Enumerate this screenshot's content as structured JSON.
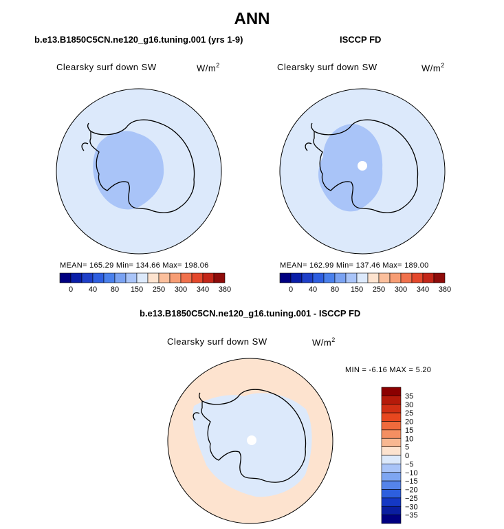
{
  "page": {
    "title": "ANN"
  },
  "panels": [
    {
      "title": "b.e13.B1850C5CN.ne120_g16.tuning.001 (yrs 1-9)",
      "variable": "Clearsky surf down SW",
      "units": "W/m",
      "units_sup": "2",
      "stats": "MEAN= 165.29   Min= 134.66   Max= 198.06"
    },
    {
      "title": "ISCCP FD",
      "variable": "Clearsky surf down SW",
      "units": "W/m",
      "units_sup": "2",
      "stats": "MEAN= 162.99   Min= 137.46   Max= 189.00"
    },
    {
      "title": "b.e13.B1850C5CN.ne120_g16.tuning.001 - ISCCP FD",
      "variable": "Clearsky surf down SW",
      "units": "W/m",
      "units_sup": "2",
      "stats": "MIN =   -6.16 MAX =    5.20"
    }
  ],
  "chart_data": [
    {
      "type": "heatmap",
      "projection": "south-polar-stereographic",
      "colorbar": {
        "orientation": "horizontal",
        "tick_labels": [
          "0",
          "40",
          "80",
          "150",
          "250",
          "300",
          "340",
          "380"
        ],
        "colors": [
          "#000080",
          "#0a1ea8",
          "#1e3fc8",
          "#2e5ee0",
          "#4a80ec",
          "#7aa2f2",
          "#a9c4f8",
          "#dce9fb",
          "#fde3cf",
          "#fbbf9c",
          "#f79d74",
          "#f0714c",
          "#e4482c",
          "#c32618",
          "#8e0c0a"
        ]
      },
      "mean": 165.29,
      "min": 134.66,
      "max": 198.06,
      "colors": {
        "ocean": "#dce9fb",
        "interior": "#a9c4f8"
      }
    },
    {
      "type": "heatmap",
      "projection": "south-polar-stereographic",
      "colorbar": {
        "orientation": "horizontal",
        "tick_labels": [
          "0",
          "40",
          "80",
          "150",
          "250",
          "300",
          "340",
          "380"
        ],
        "colors": [
          "#000080",
          "#0a1ea8",
          "#1e3fc8",
          "#2e5ee0",
          "#4a80ec",
          "#7aa2f2",
          "#a9c4f8",
          "#dce9fb",
          "#fde3cf",
          "#fbbf9c",
          "#f79d74",
          "#f0714c",
          "#e4482c",
          "#c32618",
          "#8e0c0a"
        ]
      },
      "mean": 162.99,
      "min": 137.46,
      "max": 189.0,
      "colors": {
        "ocean": "#dce9fb",
        "interior": "#a9c4f8",
        "missing": "#ffffff"
      }
    },
    {
      "type": "heatmap",
      "projection": "south-polar-stereographic",
      "colorbar": {
        "orientation": "vertical",
        "tick_labels": [
          "35",
          "30",
          "25",
          "20",
          "15",
          "10",
          "5",
          "0",
          "−5",
          "−10",
          "−15",
          "−20",
          "−25",
          "−30",
          "−35"
        ],
        "colors": [
          "#8b0000",
          "#b51a0a",
          "#d12f14",
          "#e8471f",
          "#f06a3c",
          "#f48f62",
          "#f8b791",
          "#fde3cf",
          "#dce9fb",
          "#a9c4f8",
          "#7ea6f2",
          "#5584ea",
          "#2d5fde",
          "#1438c4",
          "#0a1ea0",
          "#000080"
        ]
      },
      "min": -6.16,
      "max": 5.2,
      "colors": {
        "ocean": "#fde3cf",
        "land": "#dce9fb",
        "missing": "#ffffff"
      }
    }
  ]
}
